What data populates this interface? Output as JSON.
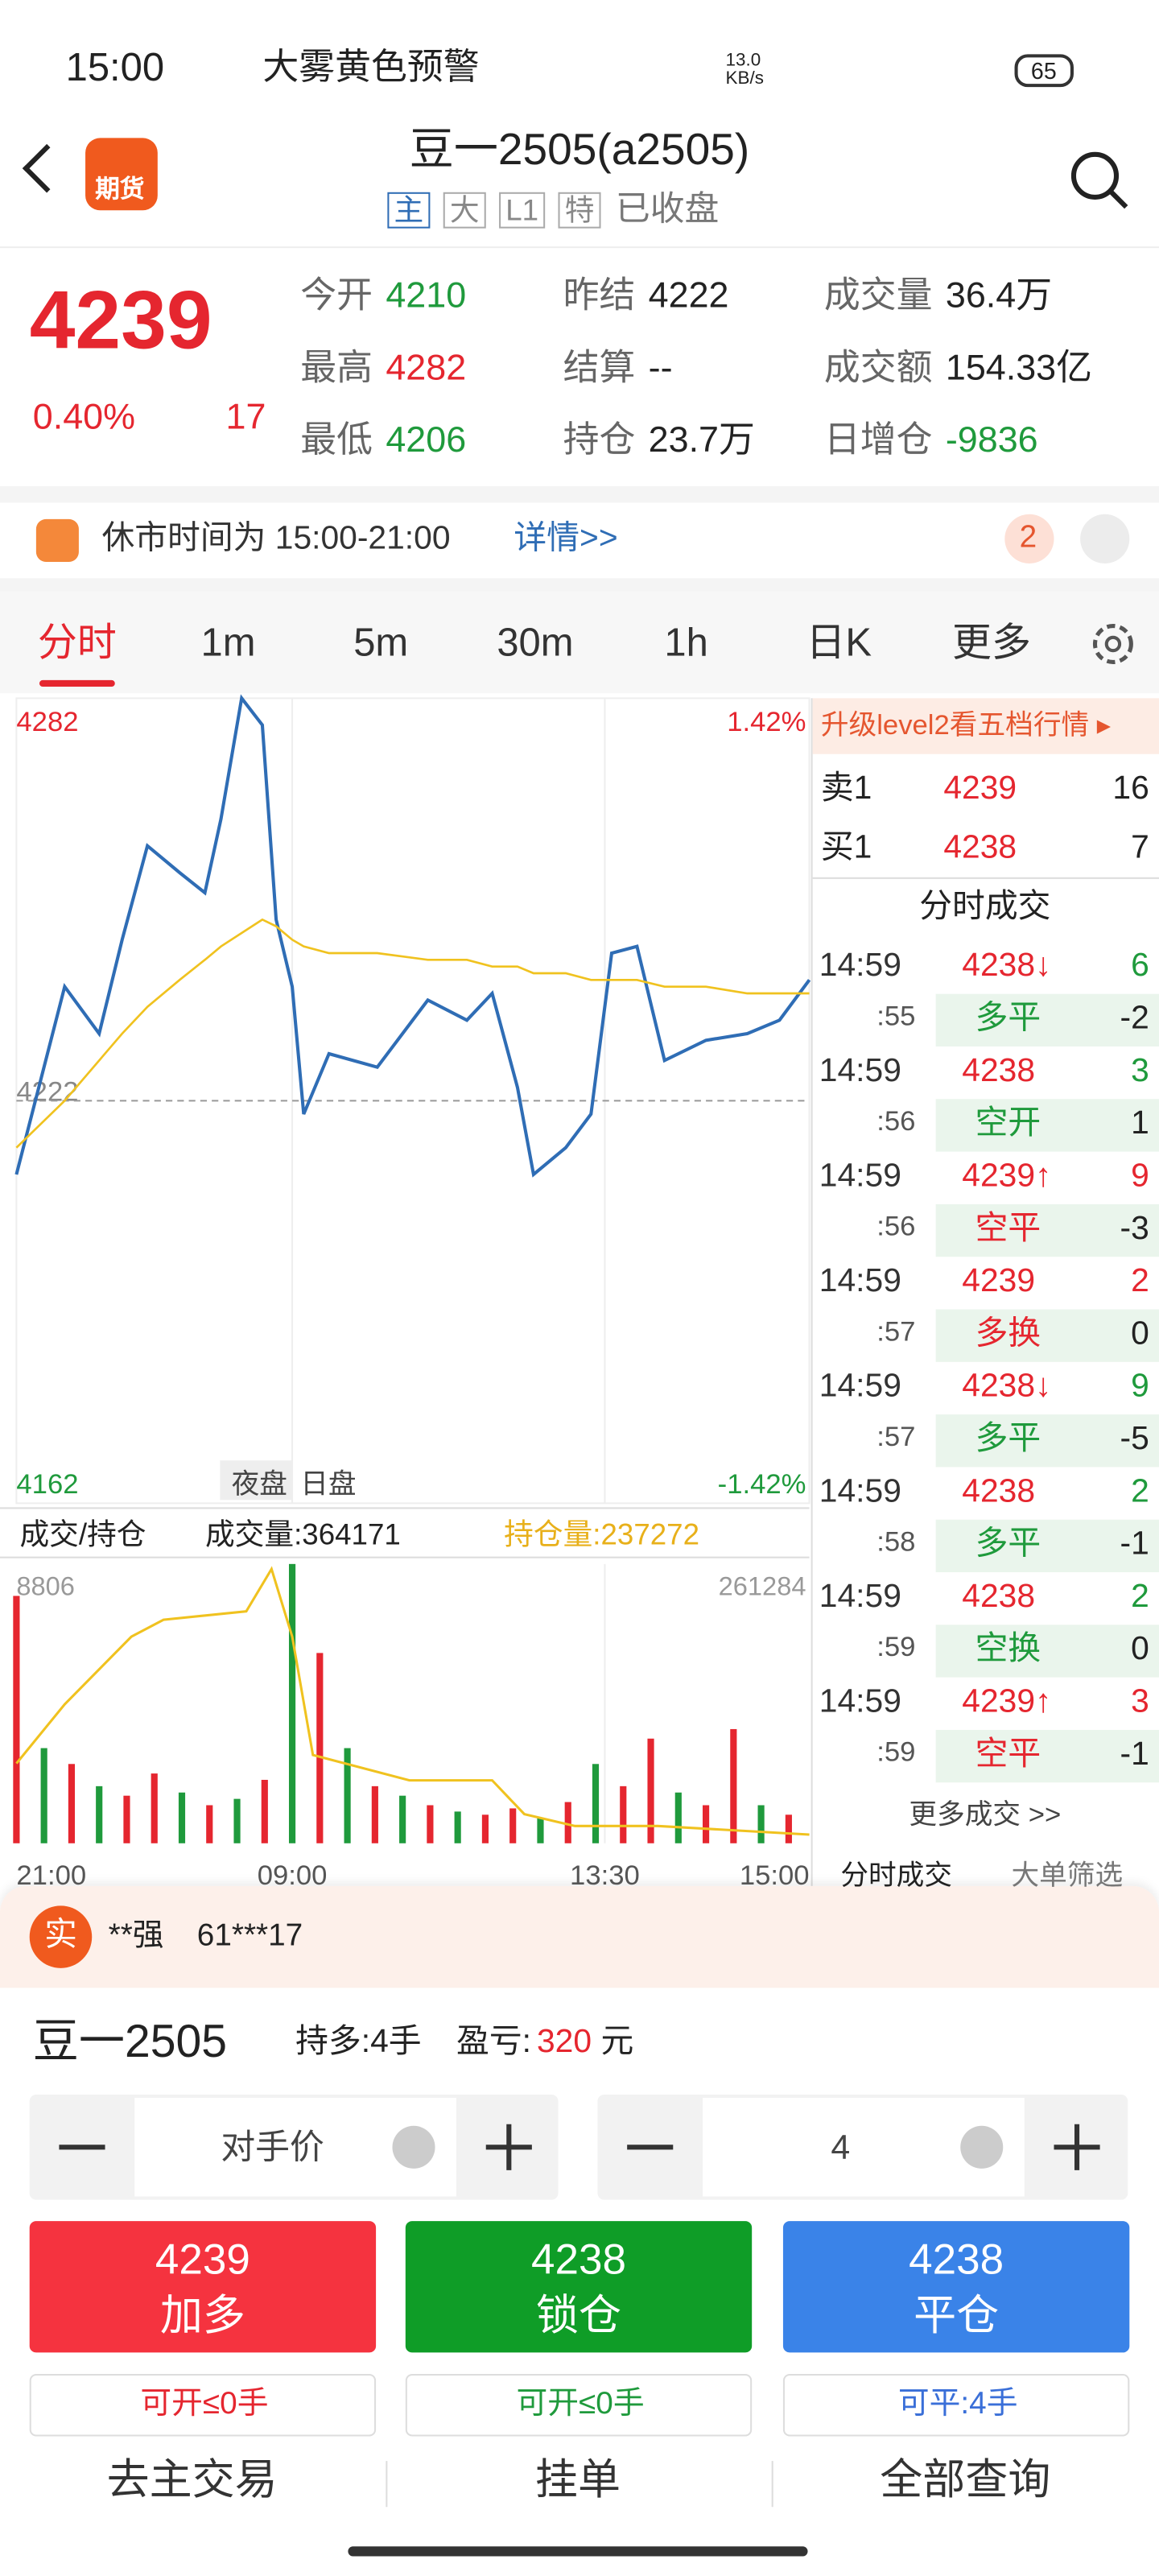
{
  "status_bar": {
    "time": "15:00",
    "alert": "大雾黄色预警",
    "speed": "13.0 KB/s",
    "battery": "65"
  },
  "header": {
    "badge": "期货",
    "title": "豆一2505(a2505)",
    "tags": [
      "主",
      "大",
      "L1",
      "特"
    ],
    "status": "已收盘"
  },
  "quote": {
    "price": "4239",
    "change_pct": "0.40%",
    "change": "17",
    "color": "#e5262f",
    "fields": [
      {
        "label": "今开",
        "value": "4210",
        "color": "#1f9a3c"
      },
      {
        "label": "昨结",
        "value": "4222",
        "color": "#222222"
      },
      {
        "label": "成交量",
        "value": "36.4万",
        "color": "#222222"
      },
      {
        "label": "最高",
        "value": "4282",
        "color": "#e5262f"
      },
      {
        "label": "结算",
        "value": "--",
        "color": "#222222"
      },
      {
        "label": "成交额",
        "value": "154.33亿",
        "color": "#222222"
      },
      {
        "label": "最低",
        "value": "4206",
        "color": "#1f9a3c"
      },
      {
        "label": "持仓",
        "value": "23.7万",
        "color": "#222222"
      },
      {
        "label": "日增仓",
        "value": "-9836",
        "color": "#1f9a3c"
      }
    ]
  },
  "notice": {
    "text": "休市时间为 15:00-21:00",
    "link": "详情>>",
    "count": "2"
  },
  "tabs": [
    "分时",
    "1m",
    "5m",
    "30m",
    "1h",
    "日K",
    "更多"
  ],
  "chart_data": [
    {
      "type": "line",
      "x": [
        0,
        21,
        36,
        46,
        57,
        71,
        82,
        89,
        98,
        107,
        113,
        120,
        125,
        136,
        157,
        179,
        196,
        207,
        218,
        225,
        239,
        250,
        259,
        270,
        282,
        300,
        318,
        332,
        345
      ],
      "series": [
        {
          "color": "#2f6db5",
          "values": [
            4211,
            4239,
            4232,
            4246,
            4260,
            4256,
            4253,
            4264,
            4282,
            4278,
            4249,
            4239,
            4220,
            4229,
            4227,
            4237,
            4234,
            4238,
            4224,
            4211,
            4215,
            4220,
            4244,
            4245,
            4228,
            4231,
            4232,
            4234,
            4240
          ]
        },
        {
          "color": "#f0c21f",
          "values": [
            4215,
            4222,
            4228,
            4232,
            4236,
            4240,
            4243,
            4245,
            4247,
            4249,
            4248,
            4246,
            4245,
            4244,
            4244,
            4243,
            4243,
            4242,
            4242,
            4241,
            4241,
            4240,
            4240,
            4240,
            4239,
            4239,
            4238,
            4238,
            4238
          ]
        }
      ],
      "xlim": [
        0,
        345
      ],
      "ylim": [
        4162,
        4282
      ],
      "yticks": [
        4162,
        4222,
        4282
      ],
      "pct_labels": [
        "1.42%",
        "-1.42%"
      ],
      "session_labels": [
        "夜盘",
        "日盘"
      ]
    },
    {
      "type": "bar",
      "toolbar": [
        "成交/持仓",
        "成交量:364171",
        "持仓量:237272"
      ],
      "x": [
        0,
        12,
        24,
        36,
        48,
        60,
        72,
        84,
        96,
        108,
        120,
        132,
        144,
        156,
        168,
        180,
        192,
        204,
        216,
        228,
        240,
        252,
        264,
        276,
        288,
        300,
        312,
        324,
        336
      ],
      "values": [
        7800,
        3000,
        2500,
        1800,
        1500,
        2200,
        1600,
        1200,
        1400,
        2000,
        8806,
        6000,
        3000,
        1800,
        1500,
        1200,
        1000,
        900,
        1100,
        800,
        1300,
        2500,
        1800,
        3300,
        1600,
        1200,
        3600,
        1200,
        900
      ],
      "bar_colors": [
        "#e5262f",
        "#1f9a3c",
        "#e5262f",
        "#1f9a3c",
        "#e5262f",
        "#e5262f",
        "#1f9a3c",
        "#e5262f",
        "#1f9a3c",
        "#e5262f",
        "#1f9a3c",
        "#e5262f",
        "#1f9a3c",
        "#e5262f",
        "#1f9a3c",
        "#e5262f",
        "#1f9a3c",
        "#e5262f",
        "#e5262f",
        "#1f9a3c",
        "#e5262f",
        "#1f9a3c",
        "#e5262f",
        "#e5262f",
        "#1f9a3c",
        "#e5262f",
        "#e5262f",
        "#1f9a3c",
        "#e5262f"
      ],
      "series": [
        {
          "axis": "y2",
          "color": "#f0c21f",
          "x": [
            0,
            21,
            50,
            64,
            100,
            111,
            120,
            129,
            171,
            207,
            221,
            243,
            279,
            345
          ],
          "values": [
            243584,
            248834,
            254834,
            256334,
            257084,
            260834,
            254834,
            244334,
            242084,
            242084,
            239084,
            238034,
            238034,
            237272
          ]
        }
      ],
      "xlim": [
        0,
        345
      ],
      "ylim": [
        0,
        8806
      ],
      "yticks": [
        8806
      ],
      "y2lim": [
        236500,
        261284
      ],
      "y2ticks": [
        261284
      ],
      "xticks": [
        {
          "value": 0,
          "label": "21:00"
        },
        {
          "value": 120,
          "label": "09:00"
        },
        {
          "value": 256,
          "label": "13:30"
        },
        {
          "value": 345,
          "label": "15:00"
        }
      ]
    }
  ],
  "side_panel": {
    "level2": "升级level2看五档行情 ▸",
    "book": [
      {
        "label": "卖1",
        "price": "4239",
        "qty": "16"
      },
      {
        "label": "买1",
        "price": "4238",
        "qty": "7"
      }
    ],
    "trades_title": "分时成交",
    "trades": [
      {
        "time": "14:59",
        "sec": ":55",
        "price": "4238↓",
        "qty": "6",
        "type": "多平",
        "change": "-2",
        "side": "#1f9a3c"
      },
      {
        "time": "14:59",
        "sec": ":56",
        "price": "4238",
        "qty": "3",
        "type": "空开",
        "change": "1",
        "side": "#1f9a3c"
      },
      {
        "time": "14:59",
        "sec": ":56",
        "price": "4239↑",
        "qty": "9",
        "type": "空平",
        "change": "-3",
        "side": "#e5262f"
      },
      {
        "time": "14:59",
        "sec": ":57",
        "price": "4239",
        "qty": "2",
        "type": "多换",
        "change": "0",
        "side": "#e5262f"
      },
      {
        "time": "14:59",
        "sec": ":57",
        "price": "4238↓",
        "qty": "9",
        "type": "多平",
        "change": "-5",
        "side": "#1f9a3c"
      },
      {
        "time": "14:59",
        "sec": ":58",
        "price": "4238",
        "qty": "2",
        "type": "多平",
        "change": "-1",
        "side": "#1f9a3c"
      },
      {
        "time": "14:59",
        "sec": ":59",
        "price": "4238",
        "qty": "2",
        "type": "空换",
        "change": "0",
        "side": "#1f9a3c"
      },
      {
        "time": "14:59",
        "sec": ":59",
        "price": "4239↑",
        "qty": "3",
        "type": "空平",
        "change": "-1",
        "side": "#e5262f"
      }
    ],
    "more": "更多成交 >>",
    "bottom_tabs": [
      "分时成交",
      "大单筛选"
    ]
  },
  "order": {
    "badge": "实",
    "name": "**强",
    "account": "61***17",
    "contract": "豆一2505",
    "position": "持多:4手",
    "pnl_label": "盈亏:",
    "pnl": "320",
    "pnl_unit": "元",
    "price_input": "对手价",
    "qty_input": "4",
    "buttons": [
      {
        "price": "4239",
        "label": "加多",
        "color": "#f5333f"
      },
      {
        "price": "4238",
        "label": "锁仓",
        "color": "#0f9d27"
      },
      {
        "price": "4238",
        "label": "平仓",
        "color": "#3a83e8"
      }
    ],
    "limits": [
      {
        "text": "可开≤0手",
        "color": "#e5262f"
      },
      {
        "text": "可开≤0手",
        "color": "#1f9a3c"
      },
      {
        "text": "可平:4手",
        "color": "#3a6fd8"
      }
    ]
  },
  "nav": [
    "去主交易",
    "挂单",
    "全部查询"
  ]
}
